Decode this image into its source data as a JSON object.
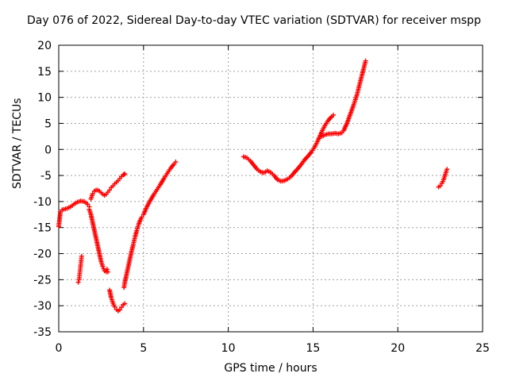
{
  "chart_data": {
    "type": "scatter",
    "title": "Day 076 of 2022, Sidereal Day-to-day VTEC variation (SDTVAR) for receiver mspp",
    "xlabel": "GPS time / hours",
    "ylabel": "SDTVAR / TECUs",
    "xlim": [
      0,
      25
    ],
    "ylim": [
      -35,
      20
    ],
    "xticks": [
      "0",
      "5",
      "10",
      "15",
      "20",
      "25"
    ],
    "yticks": [
      "-35",
      "-30",
      "-25",
      "-20",
      "-15",
      "-10",
      "-5",
      "0",
      "5",
      "10",
      "15",
      "20"
    ],
    "grid": true,
    "marker": "plus",
    "color": "#ff0000",
    "series": [
      {
        "x": [
          0.0,
          0.1,
          0.2,
          0.3,
          0.5,
          0.7,
          0.9,
          1.1,
          1.3,
          1.5,
          1.7,
          1.8
        ],
        "y": [
          -14.8,
          -12.0,
          -11.6,
          -11.5,
          -11.3,
          -11.0,
          -10.5,
          -10.1,
          -9.9,
          -10.0,
          -10.5,
          -11.0
        ]
      },
      {
        "x": [
          1.15,
          1.2,
          1.25,
          1.3,
          1.35
        ],
        "y": [
          -25.5,
          -25.0,
          -23.5,
          -22.0,
          -20.5
        ]
      },
      {
        "x": [
          1.8,
          1.9,
          2.0,
          2.1,
          2.2,
          2.3,
          2.4,
          2.5,
          2.6,
          2.7,
          2.8,
          2.85,
          2.9
        ],
        "y": [
          -11.5,
          -12.5,
          -14.0,
          -15.5,
          -17.0,
          -18.5,
          -20.0,
          -21.5,
          -22.5,
          -23.3,
          -23.5,
          -23.0,
          -23.5
        ]
      },
      {
        "x": [
          1.9,
          2.0,
          2.1,
          2.2,
          2.3,
          2.4,
          2.5,
          2.6,
          2.7,
          2.8,
          2.9,
          3.0,
          3.1,
          3.2,
          3.3,
          3.4,
          3.5,
          3.6,
          3.7,
          3.8,
          3.85,
          3.9
        ],
        "y": [
          -9.5,
          -8.5,
          -8.0,
          -7.8,
          -7.8,
          -8.0,
          -8.3,
          -8.6,
          -8.8,
          -8.6,
          -8.2,
          -7.8,
          -7.3,
          -7.0,
          -6.6,
          -6.3,
          -6.0,
          -5.6,
          -5.2,
          -4.9,
          -4.8,
          -4.7
        ]
      },
      {
        "x": [
          3.0,
          3.1,
          3.2,
          3.3,
          3.4,
          3.5,
          3.6,
          3.7,
          3.8,
          3.9
        ],
        "y": [
          -27.0,
          -28.5,
          -29.5,
          -30.2,
          -30.7,
          -31.0,
          -30.8,
          -30.3,
          -29.8,
          -29.6
        ]
      },
      {
        "x": [
          3.85,
          3.9,
          4.0,
          4.1,
          4.2,
          4.3,
          4.4,
          4.5,
          4.6,
          4.7,
          4.8,
          4.9,
          5.0,
          5.2,
          5.4,
          5.6,
          5.8,
          6.0,
          6.2,
          6.4,
          6.6,
          6.8,
          6.9
        ],
        "y": [
          -26.5,
          -25.5,
          -24.0,
          -22.5,
          -21.0,
          -19.5,
          -18.2,
          -16.8,
          -15.6,
          -14.5,
          -13.6,
          -13.0,
          -12.5,
          -11.0,
          -9.8,
          -8.7,
          -7.7,
          -6.7,
          -5.6,
          -4.6,
          -3.6,
          -2.8,
          -2.4
        ]
      },
      {
        "x": [
          10.9,
          11.1,
          11.3,
          11.5,
          11.7,
          11.9,
          12.1,
          12.3,
          12.5,
          12.7,
          12.9,
          13.1,
          13.3,
          13.5,
          13.7,
          13.9,
          14.1,
          14.3,
          14.5,
          14.7,
          14.9,
          15.1,
          15.3,
          15.5,
          15.7,
          15.9,
          16.1,
          16.2
        ],
        "y": [
          -1.4,
          -1.6,
          -2.2,
          -3.0,
          -3.8,
          -4.3,
          -4.5,
          -4.1,
          -4.4,
          -5.0,
          -5.8,
          -6.1,
          -6.0,
          -5.7,
          -5.2,
          -4.4,
          -3.7,
          -2.9,
          -2.0,
          -1.3,
          -0.5,
          0.5,
          1.8,
          3.3,
          4.6,
          5.6,
          6.3,
          6.6
        ]
      },
      {
        "x": [
          15.5,
          15.7,
          15.9,
          16.1,
          16.3,
          16.5,
          16.7,
          16.8,
          17.0,
          17.2,
          17.4,
          17.6,
          17.8,
          18.0,
          18.1
        ],
        "y": [
          2.5,
          2.8,
          3.0,
          3.0,
          3.1,
          3.0,
          3.2,
          3.6,
          5.0,
          6.8,
          8.6,
          10.6,
          13.2,
          15.7,
          17.0
        ]
      },
      {
        "x": [
          22.4,
          22.5,
          22.6,
          22.7,
          22.8,
          22.9
        ],
        "y": [
          -7.2,
          -7.0,
          -6.5,
          -5.8,
          -4.8,
          -3.8
        ]
      }
    ]
  }
}
